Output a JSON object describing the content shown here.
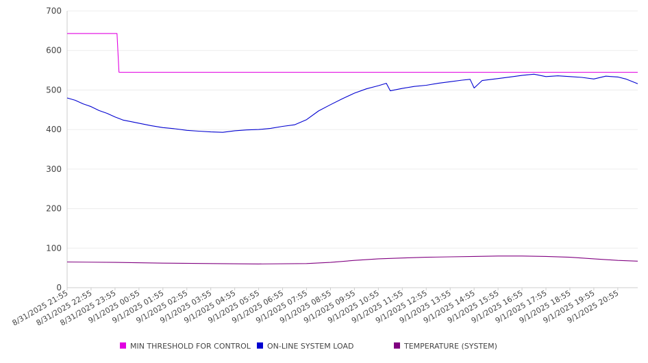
{
  "chart_data": {
    "type": "line",
    "ylim": [
      0,
      700
    ],
    "y_ticks": [
      0,
      100,
      200,
      300,
      400,
      500,
      600,
      700
    ],
    "x_tick_labels": [
      "8/31/2025 21:55",
      "8/31/2025 22:55",
      "8/31/2025 23:55",
      "9/1/2025 00:55",
      "9/1/2025 01:55",
      "9/1/2025 02:55",
      "9/1/2025 03:55",
      "9/1/2025 04:55",
      "9/1/2025 05:55",
      "9/1/2025 06:55",
      "9/1/2025 07:55",
      "9/1/2025 08:55",
      "9/1/2025 09:55",
      "9/1/2025 10:55",
      "9/1/2025 11:55",
      "9/1/2025 12:55",
      "9/1/2025 13:55",
      "9/1/2025 14:55",
      "9/1/2025 15:55",
      "9/1/2025 16:55",
      "9/1/2025 17:55",
      "9/1/2025 18:55",
      "9/1/2025 19:55",
      "9/1/2025 20:55"
    ],
    "x_range": [
      "8/31/2025 21:55",
      "9/1/2025 21:45"
    ],
    "grid": "horizontal",
    "legend_position": "bottom",
    "series": [
      {
        "name": "MIN THRESHOLD FOR CONTROL",
        "color": "#e100e1",
        "points": [
          [
            "8/31/2025 21:55",
            643
          ],
          [
            "9/1/2025 00:00",
            643
          ],
          [
            "9/1/2025 00:05",
            545
          ],
          [
            "9/1/2025 21:45",
            545
          ]
        ]
      },
      {
        "name": "ON-LINE SYSTEM LOAD",
        "color": "#0000d0",
        "points": [
          [
            "8/31/2025 21:55",
            480
          ],
          [
            "8/31/2025 22:15",
            474
          ],
          [
            "8/31/2025 22:35",
            465
          ],
          [
            "8/31/2025 22:55",
            458
          ],
          [
            "8/31/2025 23:15",
            448
          ],
          [
            "8/31/2025 23:35",
            441
          ],
          [
            "8/31/2025 23:55",
            432
          ],
          [
            "9/1/2025 00:15",
            424
          ],
          [
            "9/1/2025 00:35",
            420
          ],
          [
            "9/1/2025 00:55",
            416
          ],
          [
            "9/1/2025 01:25",
            410
          ],
          [
            "9/1/2025 01:55",
            405
          ],
          [
            "9/1/2025 02:25",
            402
          ],
          [
            "9/1/2025 02:55",
            398
          ],
          [
            "9/1/2025 03:25",
            396
          ],
          [
            "9/1/2025 03:55",
            394
          ],
          [
            "9/1/2025 04:25",
            393
          ],
          [
            "9/1/2025 04:55",
            397
          ],
          [
            "9/1/2025 05:25",
            399
          ],
          [
            "9/1/2025 05:55",
            400
          ],
          [
            "9/1/2025 06:25",
            403
          ],
          [
            "9/1/2025 06:55",
            408
          ],
          [
            "9/1/2025 07:25",
            412
          ],
          [
            "9/1/2025 07:55",
            425
          ],
          [
            "9/1/2025 08:25",
            447
          ],
          [
            "9/1/2025 08:55",
            463
          ],
          [
            "9/1/2025 09:25",
            478
          ],
          [
            "9/1/2025 09:55",
            492
          ],
          [
            "9/1/2025 10:25",
            503
          ],
          [
            "9/1/2025 10:55",
            511
          ],
          [
            "9/1/2025 11:15",
            517
          ],
          [
            "9/1/2025 11:25",
            498
          ],
          [
            "9/1/2025 11:55",
            504
          ],
          [
            "9/1/2025 12:25",
            509
          ],
          [
            "9/1/2025 12:55",
            512
          ],
          [
            "9/1/2025 13:25",
            517
          ],
          [
            "9/1/2025 13:55",
            521
          ],
          [
            "9/1/2025 14:25",
            525
          ],
          [
            "9/1/2025 14:45",
            527
          ],
          [
            "9/1/2025 14:55",
            505
          ],
          [
            "9/1/2025 15:15",
            524
          ],
          [
            "9/1/2025 15:55",
            529
          ],
          [
            "9/1/2025 16:25",
            533
          ],
          [
            "9/1/2025 16:55",
            537
          ],
          [
            "9/1/2025 17:25",
            540
          ],
          [
            "9/1/2025 17:55",
            534
          ],
          [
            "9/1/2025 18:25",
            536
          ],
          [
            "9/1/2025 18:55",
            534
          ],
          [
            "9/1/2025 19:25",
            532
          ],
          [
            "9/1/2025 19:55",
            528
          ],
          [
            "9/1/2025 20:25",
            535
          ],
          [
            "9/1/2025 20:55",
            533
          ],
          [
            "9/1/2025 21:15",
            528
          ],
          [
            "9/1/2025 21:45",
            516
          ]
        ]
      },
      {
        "name": "TEMPERATURE (SYSTEM)",
        "color": "#800080",
        "points": [
          [
            "8/31/2025 21:55",
            65
          ],
          [
            "8/31/2025 23:55",
            64
          ],
          [
            "9/1/2025 01:55",
            62
          ],
          [
            "9/1/2025 03:55",
            61
          ],
          [
            "9/1/2025 05:55",
            60
          ],
          [
            "9/1/2025 07:55",
            61
          ],
          [
            "9/1/2025 08:55",
            64
          ],
          [
            "9/1/2025 09:55",
            69
          ],
          [
            "9/1/2025 10:55",
            73
          ],
          [
            "9/1/2025 11:55",
            75
          ],
          [
            "9/1/2025 12:55",
            77
          ],
          [
            "9/1/2025 13:55",
            78
          ],
          [
            "9/1/2025 14:55",
            79
          ],
          [
            "9/1/2025 15:55",
            80
          ],
          [
            "9/1/2025 16:55",
            80
          ],
          [
            "9/1/2025 17:55",
            79
          ],
          [
            "9/1/2025 18:55",
            77
          ],
          [
            "9/1/2025 19:55",
            73
          ],
          [
            "9/1/2025 20:55",
            69
          ],
          [
            "9/1/2025 21:45",
            67
          ]
        ]
      }
    ]
  }
}
